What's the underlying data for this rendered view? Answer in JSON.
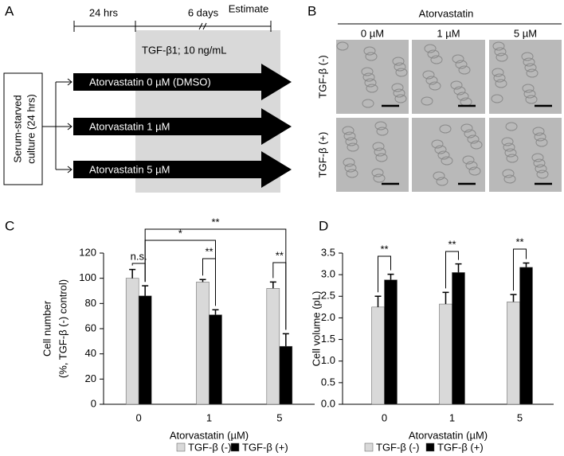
{
  "panel_labels": [
    "A",
    "B",
    "C",
    "D"
  ],
  "diagram": {
    "times": [
      "24 hrs",
      "6 days",
      "Estimate"
    ],
    "treatment": "TGF-β1; 10 ng/mL",
    "culture": [
      "Serum-starved",
      "culture (24 hrs)"
    ],
    "arrows": [
      "Atorvastatin 0 µM (DMSO)",
      "Atorvastatin 1 µM",
      "Atorvastatin 5 µM"
    ]
  },
  "micrographs": {
    "title": "Atorvastatin",
    "columns": [
      "0 µM",
      "1 µM",
      "5 µM"
    ],
    "rows": [
      "TGF-β (-)",
      "TGF-β (+)"
    ]
  },
  "chart_data": [
    {
      "type": "bar",
      "categories": [
        "0",
        "1",
        "5"
      ],
      "xlabel": "Atorvastatin (µM)",
      "ylabel": [
        "Cell number",
        "(%, TGF-β (-) control)"
      ],
      "ylim": [
        0,
        120
      ],
      "yticks": [
        0,
        20,
        40,
        60,
        80,
        100,
        120
      ],
      "series": [
        {
          "name": "TGF-β (-)",
          "color": "#d9d9d9",
          "values": [
            100,
            97,
            92
          ],
          "errors": [
            7,
            2,
            5
          ]
        },
        {
          "name": "TGF-β (+)",
          "color": "#000000",
          "values": [
            86,
            71,
            46
          ],
          "errors": [
            8,
            4,
            10
          ]
        }
      ],
      "annotations": [
        "n.s.",
        "*",
        "**",
        "**",
        "**"
      ]
    },
    {
      "type": "bar",
      "categories": [
        "0",
        "1",
        "5"
      ],
      "xlabel": "Atorvastatin (µM)",
      "ylabel": [
        "Cell volume (pL)"
      ],
      "ylim": [
        0,
        3.5
      ],
      "yticks": [
        {
          "value": 0,
          "label": "0.0"
        },
        0.5,
        {
          "value": 1,
          "label": "1.0"
        },
        1.5,
        {
          "value": 2,
          "label": "2.0"
        },
        2.5,
        {
          "value": 3,
          "label": "3.0"
        },
        3.5
      ],
      "series": [
        {
          "name": "TGF-β (-)",
          "color": "#d9d9d9",
          "values": [
            2.25,
            2.32,
            2.37
          ],
          "errors": [
            0.25,
            0.27,
            0.17
          ]
        },
        {
          "name": "TGF-β (+)",
          "color": "#000000",
          "values": [
            2.88,
            3.05,
            3.17
          ],
          "errors": [
            0.13,
            0.2,
            0.1
          ]
        }
      ],
      "annotations": [
        "**",
        "**",
        "**"
      ]
    }
  ]
}
